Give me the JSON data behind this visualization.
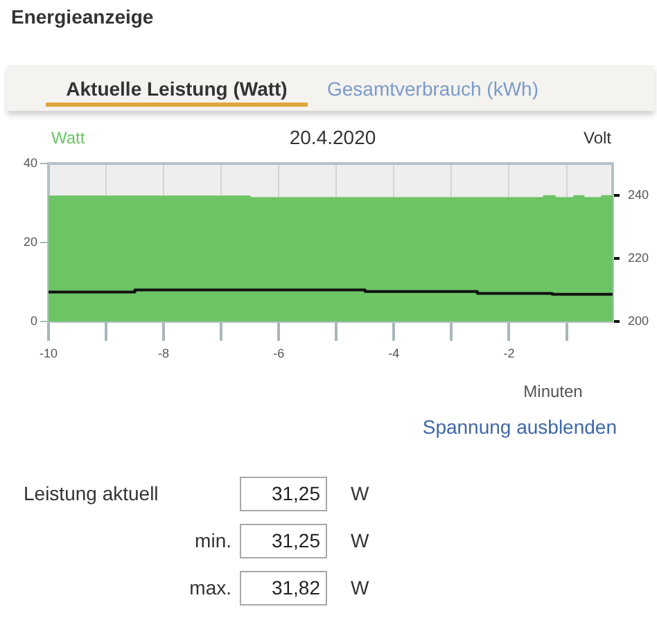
{
  "chart_data": {
    "type": "area",
    "title": "Energieanzeige",
    "subtitle": "20.4.2020",
    "xlabel": "Minuten",
    "ylabel": "Watt",
    "y2label": "Volt",
    "annotations": [
      "Aktuelle Leistung (Watt)",
      "Gesamtverbrauch (kWh)",
      "Spannung ausblenden",
      "Leistung aktuell",
      "31,25",
      "W",
      "min.",
      "31,25",
      "W",
      "max.",
      "31,82",
      "W"
    ],
    "series": [
      {
        "color": "#6cc464",
        "x": [
          -10,
          -6.5,
          -6.5,
          -1.4,
          -1.4,
          -1.2,
          -1.2,
          -0.87,
          -0.87,
          -0.7,
          -0.7,
          -0.39,
          -0.39,
          -0.2
        ],
        "values": [
          31.7,
          31.7,
          31.3,
          31.3,
          31.8,
          31.8,
          31.3,
          31.3,
          31.8,
          31.8,
          31.3,
          31.3,
          31.8,
          31.8
        ]
      },
      {
        "type": "step",
        "axis": "y2",
        "color": "#111111",
        "x": [
          -10,
          -8.5,
          -4.5,
          -2.55,
          -1.25,
          -0.2
        ],
        "values": [
          209.3,
          210,
          209.5,
          208.9,
          208.6,
          208.6
        ]
      }
    ],
    "xlim": [
      -10,
      -0.2
    ],
    "xticks": [
      -10,
      {
        "value": -9,
        "label": null
      },
      -8,
      {
        "value": -7,
        "label": null
      },
      -6,
      {
        "value": -5,
        "label": null
      },
      -4,
      {
        "value": -3,
        "label": null
      },
      -2,
      {
        "value": -1,
        "label": null
      }
    ],
    "ylim": [
      0,
      40
    ],
    "yticks": [
      0,
      20,
      40
    ],
    "y2lim": [
      200,
      250
    ],
    "y2ticks": [
      200,
      220,
      240
    ],
    "grid": "x"
  }
}
